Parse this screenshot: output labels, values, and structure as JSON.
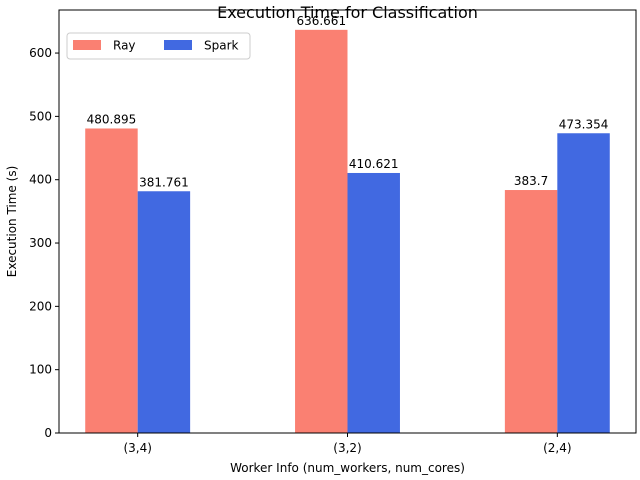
{
  "chart_data": {
    "type": "bar",
    "title": "Execution Time for Classification",
    "xlabel": "Worker Info (num_workers, num_cores)",
    "ylabel": "Execution Time (s)",
    "categories": [
      "(3,4)",
      "(3,2)",
      "(2,4)"
    ],
    "series": [
      {
        "name": "Ray",
        "color": "#fa8072",
        "values": [
          480.895,
          636.661,
          383.7
        ]
      },
      {
        "name": "Spark",
        "color": "#4169e1",
        "values": [
          381.761,
          410.621,
          473.354
        ]
      }
    ],
    "ylim": [
      0,
      667.994
    ],
    "yticks": [
      0,
      100,
      200,
      300,
      400,
      500,
      600
    ],
    "grid": false,
    "legend_position": "upper-left"
  }
}
